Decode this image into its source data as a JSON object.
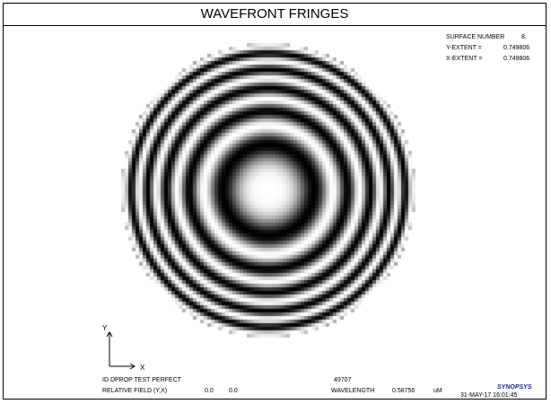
{
  "window": {
    "title": "WAVEFRONT FRINGES"
  },
  "surface_info": {
    "surface_label": "SURFACE NUMBER",
    "surface_value": "8.",
    "y_extent_label": "Y-EXTENT =",
    "y_extent_value": "0.749806",
    "x_extent_label": "X-EXTENT =",
    "x_extent_value": "0.749806"
  },
  "axes": {
    "y_label": "Y",
    "x_label": "X"
  },
  "footer": {
    "id_text": "ID DPROP TEST PERFECT",
    "run_number": "49707",
    "field_label": "RELATIVE FIELD (Y,X)",
    "field_y": "0.0",
    "field_x": "0.0",
    "wavelength_label": "WAVELENGTH",
    "wavelength_value": "0.58756",
    "wavelength_unit": "uM",
    "brand": "SYNOPSYS",
    "timestamp": "31-MAY-17  16:01:45"
  },
  "fringe_pattern": {
    "ring_count": 5.2,
    "colors": {
      "dark": "#000000",
      "light": "#ffffff"
    }
  }
}
